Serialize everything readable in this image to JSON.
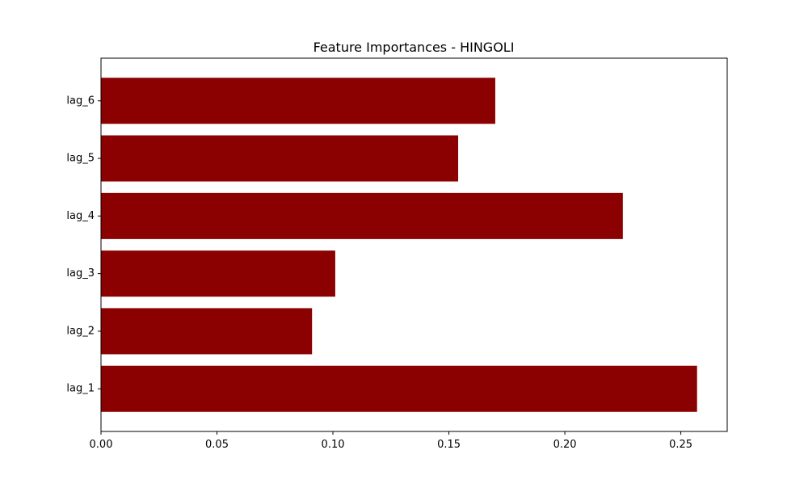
{
  "chart_data": {
    "type": "bar",
    "orientation": "horizontal",
    "title": "Feature Importances - HINGOLI",
    "xlabel": "",
    "ylabel": "",
    "categories": [
      "lag_1",
      "lag_2",
      "lag_3",
      "lag_4",
      "lag_5",
      "lag_6"
    ],
    "values": [
      0.257,
      0.091,
      0.101,
      0.225,
      0.154,
      0.17
    ],
    "xlim": [
      0.0,
      0.27
    ],
    "xticks": [
      0.0,
      0.05,
      0.1,
      0.15,
      0.2,
      0.25
    ],
    "xtick_labels": [
      "0.00",
      "0.05",
      "0.10",
      "0.15",
      "0.20",
      "0.25"
    ],
    "bar_color": "#8b0000",
    "grid": false,
    "legend": "none"
  }
}
